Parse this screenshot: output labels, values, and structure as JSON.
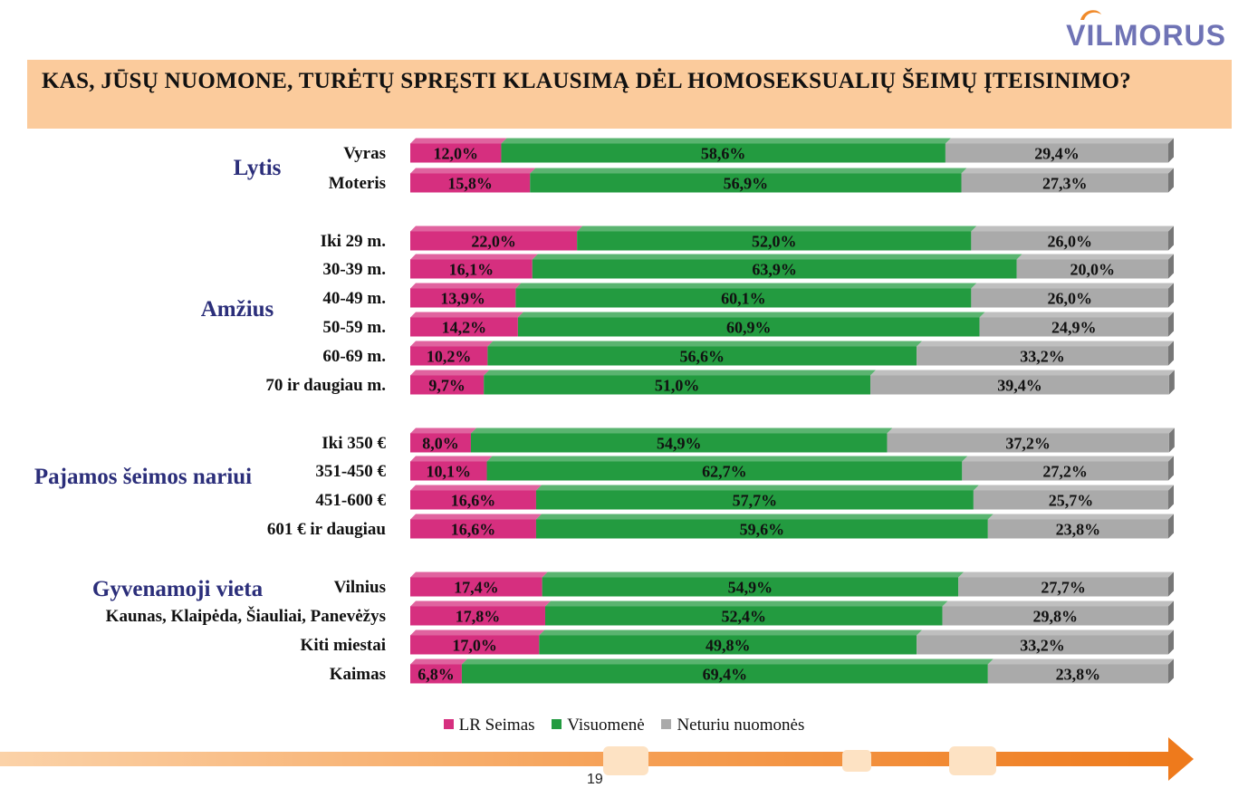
{
  "logo": {
    "text": "VILMORUS"
  },
  "title": "KAS, JŪSŲ NUOMONE, TURĖTŲ SPRĘSTI KLAUSIMĄ DĖL HOMOSEKSUALIŲ ŠEIMŲ ĮTEISINIMO?",
  "page_number": "19",
  "colors": {
    "lr_seimas": "#d62f7f",
    "visuomene": "#239b40",
    "neturiu": "#aaaaaa",
    "title_bg": "#fbcb9c",
    "group_label": "#2b2e7a"
  },
  "chart_data": {
    "type": "bar",
    "orientation": "horizontal",
    "stacked": true,
    "percent_stacked": true,
    "value_unit": "%",
    "groups": [
      {
        "name": "Lytis",
        "rows": [
          0,
          1
        ]
      },
      {
        "name": "Amžius",
        "rows": [
          2,
          3,
          4,
          5,
          6,
          7
        ]
      },
      {
        "name": "Pajamos šeimos nariui",
        "rows": [
          8,
          9,
          10,
          11
        ]
      },
      {
        "name": "Gyvenamoji vieta",
        "rows": [
          12,
          13,
          14,
          15
        ]
      }
    ],
    "categories": [
      "Vyras",
      "Moteris",
      "Iki 29 m.",
      "30-39 m.",
      "40-49 m.",
      "50-59 m.",
      "60-69 m.",
      "70 ir daugiau m.",
      "Iki 350 €",
      "351-450 €",
      "451-600 €",
      "601 € ir daugiau",
      "Vilnius",
      "Kaunas, Klaipėda, Šiauliai, Panevėžys",
      "Kiti miestai",
      "Kaimas"
    ],
    "series": [
      {
        "name": "LR Seimas",
        "color": "#d62f7f",
        "values": [
          12.0,
          15.8,
          22.0,
          16.1,
          13.9,
          14.2,
          10.2,
          9.7,
          8.0,
          10.1,
          16.6,
          16.6,
          17.4,
          17.8,
          17.0,
          6.8
        ],
        "labels": [
          "12,0%",
          "15,8%",
          "22,0%",
          "16,1%",
          "13,9%",
          "14,2%",
          "10,2%",
          "9,7%",
          "8,0%",
          "10,1%",
          "16,6%",
          "16,6%",
          "17,4%",
          "17,8%",
          "17,0%",
          "6,8%"
        ]
      },
      {
        "name": "Visuomenė",
        "color": "#239b40",
        "values": [
          58.6,
          56.9,
          52.0,
          63.9,
          60.1,
          60.9,
          56.6,
          51.0,
          54.9,
          62.7,
          57.7,
          59.6,
          54.9,
          52.4,
          49.8,
          69.4
        ],
        "labels": [
          "58,6%",
          "56,9%",
          "52,0%",
          "63,9%",
          "60,1%",
          "60,9%",
          "56,6%",
          "51,0%",
          "54,9%",
          "62,7%",
          "57,7%",
          "59,6%",
          "54,9%",
          "52,4%",
          "49,8%",
          "69,4%"
        ]
      },
      {
        "name": "Neturiu nuomonės",
        "color": "#aaaaaa",
        "values": [
          29.4,
          27.3,
          26.0,
          20.0,
          26.0,
          24.9,
          33.2,
          39.4,
          37.2,
          27.2,
          25.7,
          23.8,
          27.7,
          29.8,
          33.2,
          23.8
        ],
        "labels": [
          "29,4%",
          "27,3%",
          "26,0%",
          "20,0%",
          "26,0%",
          "24,9%",
          "33,2%",
          "39,4%",
          "37,2%",
          "27,2%",
          "25,7%",
          "23,8%",
          "27,7%",
          "29,8%",
          "33,2%",
          "23,8%"
        ]
      }
    ],
    "xlim": [
      0,
      100
    ],
    "legend": "bottom"
  }
}
